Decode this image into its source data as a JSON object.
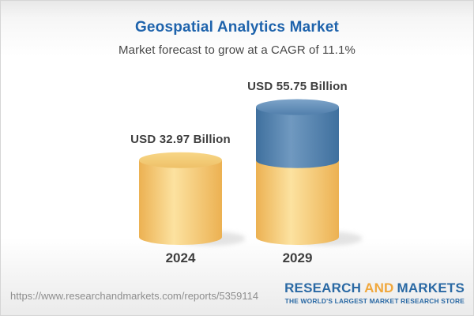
{
  "colors": {
    "title_blue": "#1e63ac",
    "subtitle_text": "#474747",
    "label_text": "#3e3e3e",
    "url_gray": "#8e8e8e",
    "logo_blue": "#2a69a4",
    "logo_gold": "#f0a73c"
  },
  "chart_data": {
    "type": "bar",
    "variant": "3d-cylinder",
    "title": "Geospatial Analytics Market",
    "subtitle": "Market forecast to grow at a CAGR of 11.1%",
    "categories": [
      "2024",
      "2029"
    ],
    "values": [
      32.97,
      55.75
    ],
    "value_labels": [
      "USD 32.97 Billion",
      "USD 55.75 Billion"
    ],
    "unit": "USD Billion",
    "cagr_pct": 11.1,
    "legend": "none",
    "grid": false,
    "stack_hint": "2029 cylinder: gold base segment equals 2024 value, blue top segment is growth to 2029",
    "colors": {
      "gold_body_edge": "#ecb152",
      "gold_body_mid": "#fce2a0",
      "gold_top_light": "#f8d686",
      "gold_top_dark": "#eec168",
      "blue_body_edge": "#3f709e",
      "blue_body_mid": "#7099c0",
      "blue_top_light": "#7da4c9",
      "blue_top_dark": "#517fac",
      "shadow": "#c9c9c9"
    }
  },
  "footer": {
    "url": "https://www.researchandmarkets.com/reports/5359114",
    "logo": {
      "word1": "RESEARCH",
      "word2": "AND",
      "word3": "MARKETS",
      "tagline": "THE WORLD'S LARGEST MARKET RESEARCH STORE"
    }
  }
}
